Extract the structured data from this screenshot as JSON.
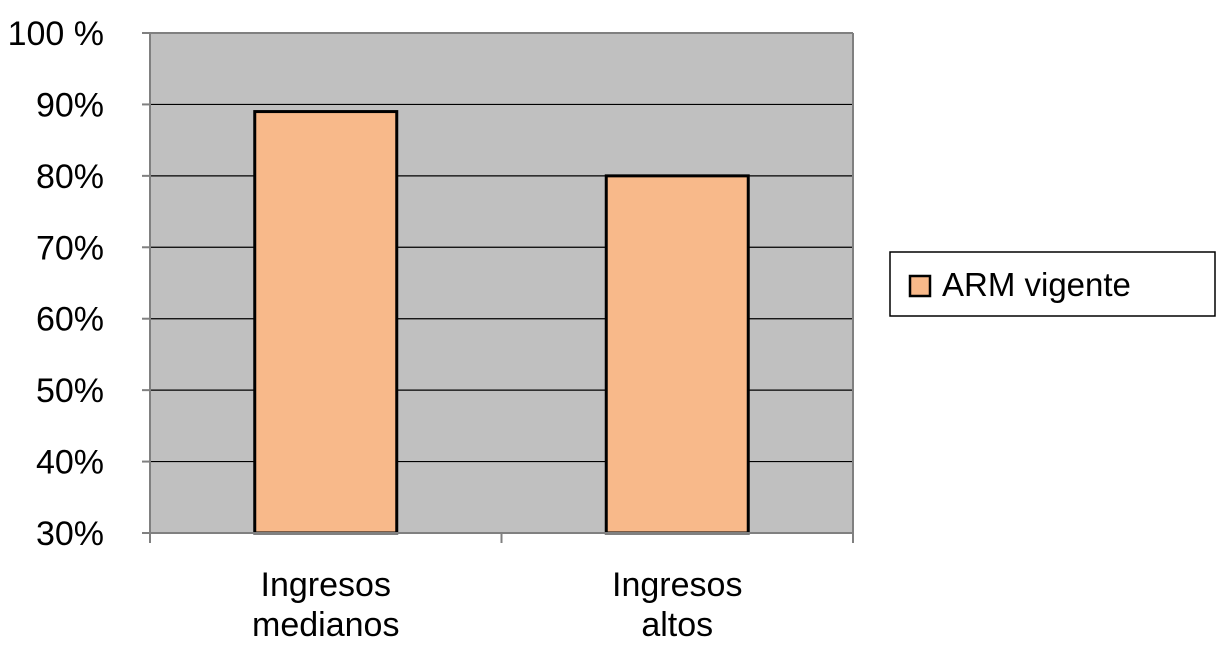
{
  "chart_data": {
    "type": "bar",
    "categories": [
      [
        "Ingresos",
        "medianos"
      ],
      [
        "Ingresos",
        "altos"
      ]
    ],
    "series": [
      {
        "name": "ARM vigente",
        "values": [
          89,
          80
        ]
      }
    ],
    "ylim": [
      30,
      100
    ],
    "y_ticks": [
      30,
      40,
      50,
      60,
      70,
      80,
      90,
      100
    ],
    "y_tick_labels": [
      "30%",
      "40%",
      "50%",
      "60%",
      "70%",
      "80%",
      "90%",
      "100 %"
    ],
    "title": "",
    "xlabel": "",
    "ylabel": "",
    "grid": true,
    "legend_position": "right",
    "colors": {
      "plot_background": "#c0c0c0",
      "bar_fill": "#f8b98a",
      "bar_stroke": "#000000",
      "grid": "#000000",
      "axis": "#808080"
    }
  }
}
